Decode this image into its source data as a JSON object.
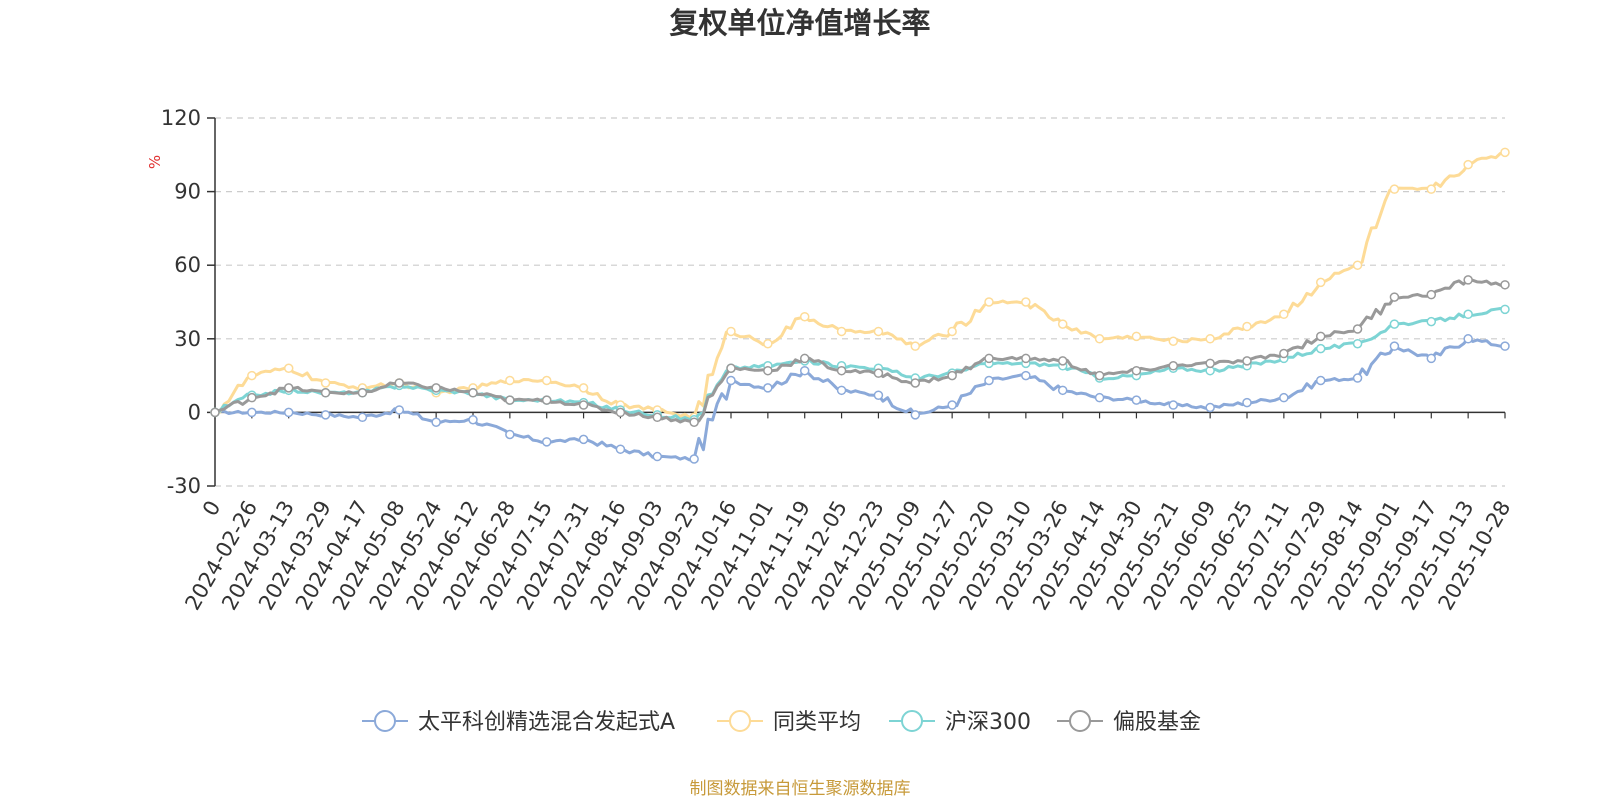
{
  "chart_data": {
    "type": "line",
    "title": "复权单位净值增长率",
    "ylabel": "%",
    "ylim": [
      -30,
      120
    ],
    "yticks": [
      -30,
      0,
      30,
      60,
      90,
      120
    ],
    "grid": true,
    "legend_position": "bottom",
    "source": "制图数据来自恒生聚源数据库",
    "x_ticks": [
      "0",
      "2024-02-26",
      "2024-03-13",
      "2024-03-29",
      "2024-04-17",
      "2024-05-08",
      "2024-05-24",
      "2024-06-12",
      "2024-06-28",
      "2024-07-15",
      "2024-07-31",
      "2024-08-16",
      "2024-09-03",
      "2024-09-23",
      "2024-10-16",
      "2024-11-01",
      "2024-11-19",
      "2024-12-05",
      "2024-12-23",
      "2025-01-09",
      "2025-01-27",
      "2025-02-20",
      "2025-03-10",
      "2025-03-26",
      "2025-04-14",
      "2025-04-30",
      "2025-05-21",
      "2025-06-09",
      "2025-06-25",
      "2025-07-11",
      "2025-07-29",
      "2025-08-14",
      "2025-09-01",
      "2025-09-17",
      "2025-10-13",
      "2025-10-28"
    ],
    "series": [
      {
        "name": "太平科创精选混合发起式A",
        "color": "#8ba9d9",
        "values": [
          0,
          0,
          0,
          -1,
          -2,
          1,
          -4,
          -3,
          -9,
          -12,
          -11,
          -15,
          -18,
          -19,
          13,
          10,
          17,
          9,
          7,
          -1,
          3,
          13,
          15,
          9,
          6,
          5,
          3,
          2,
          4,
          6,
          13,
          14,
          27,
          22,
          30,
          27
        ]
      },
      {
        "name": "同类平均",
        "color": "#fddb97",
        "values": [
          0,
          15,
          18,
          12,
          10,
          12,
          8,
          10,
          13,
          13,
          10,
          3,
          1,
          -2,
          33,
          28,
          39,
          33,
          33,
          27,
          33,
          45,
          45,
          36,
          30,
          31,
          29,
          30,
          35,
          40,
          53,
          60,
          91,
          91,
          101,
          106
        ]
      },
      {
        "name": "沪深300",
        "color": "#7dd4d4",
        "values": [
          0,
          7,
          9,
          8,
          8,
          11,
          9,
          8,
          5,
          5,
          4,
          1,
          -1,
          -3,
          18,
          19,
          21,
          19,
          18,
          14,
          16,
          20,
          20,
          19,
          14,
          15,
          18,
          17,
          19,
          22,
          26,
          28,
          36,
          37,
          40,
          42
        ]
      },
      {
        "name": "偏股基金",
        "color": "#999999",
        "values": [
          0,
          6,
          10,
          8,
          8,
          12,
          10,
          8,
          5,
          5,
          3,
          0,
          -2,
          -4,
          18,
          17,
          22,
          17,
          16,
          12,
          15,
          22,
          22,
          21,
          15,
          17,
          19,
          20,
          21,
          24,
          31,
          34,
          47,
          48,
          54,
          52
        ]
      }
    ]
  }
}
